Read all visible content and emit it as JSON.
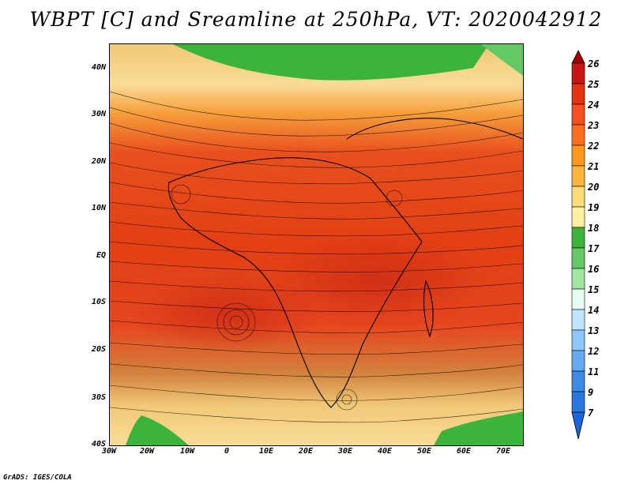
{
  "title": "WBPT [C] and Sreamline at 250hPa, VT: 2020042912",
  "footer": "GrADS: IGES/COLA",
  "y_ticks": [
    "40N",
    "30N",
    "20N",
    "10N",
    "EQ",
    "10S",
    "20S",
    "30S",
    "40S"
  ],
  "x_ticks": [
    "30W",
    "20W",
    "10W",
    "0",
    "10E",
    "20E",
    "30E",
    "40E",
    "50E",
    "60E",
    "70E"
  ],
  "colorbar": {
    "levels": [
      "26",
      "25",
      "24",
      "23",
      "22",
      "21",
      "20",
      "19",
      "18",
      "17",
      "16",
      "15",
      "14",
      "13",
      "12",
      "11",
      "9",
      "7"
    ],
    "colors": [
      "#a50000",
      "#c81414",
      "#e6320f",
      "#f5501e",
      "#ff6e1e",
      "#ff961e",
      "#ffb43c",
      "#fadc78",
      "#fff0a0",
      "#3cb43c",
      "#64c864",
      "#a0e6a0",
      "#e6fff0",
      "#bee6ff",
      "#8cc8ff",
      "#64aaf0",
      "#3c8ce6",
      "#1e64dc"
    ]
  },
  "features": {
    "warm_core_color": "#e8461a",
    "cool_north_color": "#3cb43c",
    "streamline_color": "#000000"
  }
}
